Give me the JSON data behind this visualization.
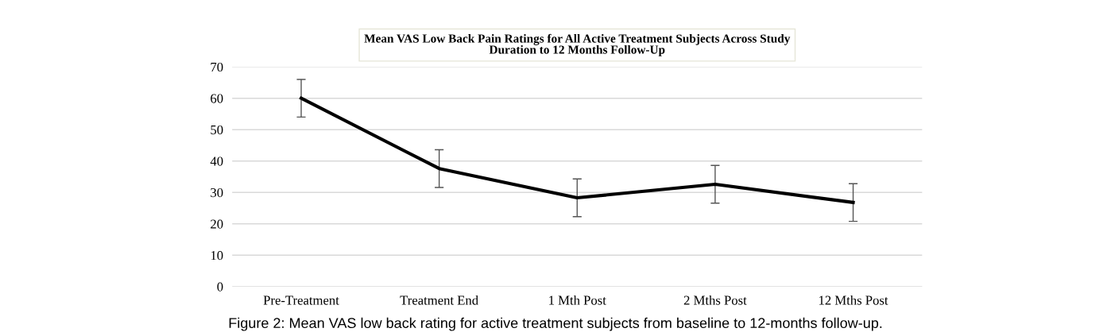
{
  "chart_data": {
    "type": "line",
    "title": "Mean VAS Low Back Pain Ratings for All Active Treatment Subjects Across Study\nDuration to 12 Months Follow-Up",
    "categories": [
      "Pre-Treatment",
      "Treatment End",
      "1 Mth Post",
      "2 Mths Post",
      "12 Mths Post"
    ],
    "series": [
      {
        "color": "#000000",
        "values": [
          60,
          37.6,
          28.3,
          32.6,
          26.8
        ],
        "errors": [
          6,
          6,
          6,
          6,
          6
        ]
      }
    ],
    "ylim": [
      0,
      70
    ],
    "yticks": [
      0,
      10,
      20,
      30,
      40,
      50,
      60,
      70
    ],
    "grid": "y",
    "marker": "none",
    "line_style": "solid",
    "annotations": [
      "Figure 2: Mean VAS low back rating for active treatment subjects from baseline to 12-months follow-up."
    ]
  }
}
